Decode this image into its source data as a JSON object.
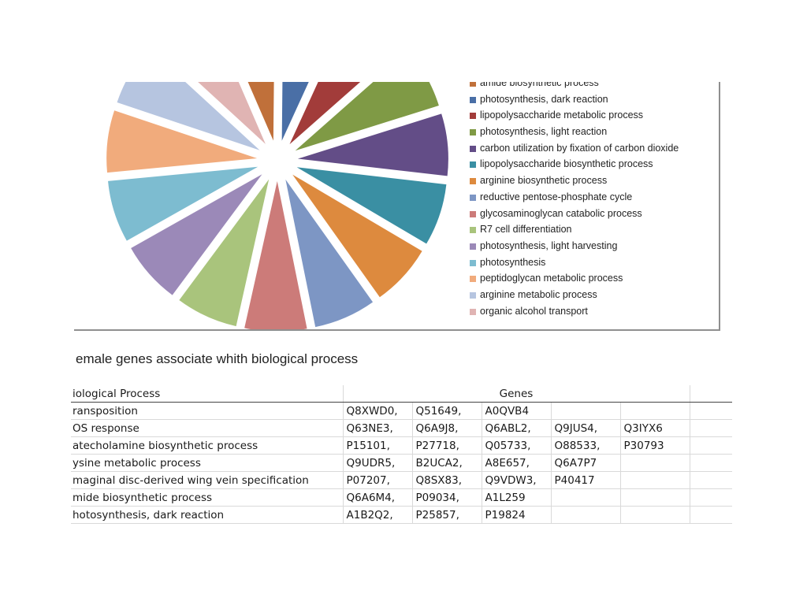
{
  "chart_data": {
    "type": "pie",
    "legend_position": "right",
    "categories": [
      "amide biosynthetic process",
      "photosynthesis, dark reaction",
      "lipopolysaccharide metabolic process",
      "photosynthesis, light reaction",
      "carbon utilization by fixation of carbon dioxide",
      "lipopolysaccharide biosynthetic process",
      "arginine biosynthetic process",
      "reductive pentose-phosphate cycle",
      "glycosaminoglycan catabolic process",
      "R7 cell differentiation",
      "photosynthesis, light harvesting",
      "photosynthesis",
      "peptidoglycan metabolic process",
      "arginine metabolic process",
      "organic alcohol transport"
    ],
    "colors": [
      "#c0703a",
      "#4a6fa6",
      "#a23c3a",
      "#7f9a45",
      "#634d87",
      "#3a8fa3",
      "#dd8a3e",
      "#7d96c4",
      "#cc7b79",
      "#a9c47c",
      "#9b89b8",
      "#7dbcd0",
      "#f1ab7c",
      "#b6c5e0",
      "#e0b4b3"
    ]
  },
  "table": {
    "title": "emale genes associate whith biological process",
    "header_process": "iological Process",
    "header_genes": "Genes",
    "rows": [
      {
        "process": "ransposition",
        "genes": [
          "Q8XWD0,",
          "Q51649,",
          "A0QVB4",
          "",
          "",
          ""
        ]
      },
      {
        "process": "OS response",
        "genes": [
          "Q63NE3,",
          "Q6A9J8,",
          "Q6ABL2,",
          "Q9JUS4,",
          "Q3IYX6",
          ""
        ]
      },
      {
        "process": "atecholamine biosynthetic process",
        "genes": [
          "P15101,",
          "P27718,",
          "Q05733,",
          "O88533,",
          "P30793",
          ""
        ]
      },
      {
        "process": "ysine metabolic process",
        "genes": [
          "Q9UDR5,",
          "B2UCA2,",
          "A8E657,",
          "Q6A7P7",
          "",
          ""
        ]
      },
      {
        "process": "maginal disc-derived wing vein specification",
        "genes": [
          "P07207,",
          "Q8SX83,",
          "Q9VDW3,",
          "P40417",
          "",
          ""
        ]
      },
      {
        "process": "mide biosynthetic process",
        "genes": [
          "Q6A6M4,",
          "P09034,",
          "A1L259",
          "",
          "",
          ""
        ]
      },
      {
        "process": "hotosynthesis, dark reaction",
        "genes": [
          "A1B2Q2,",
          "P25857,",
          "P19824",
          "",
          "",
          ""
        ]
      }
    ]
  }
}
